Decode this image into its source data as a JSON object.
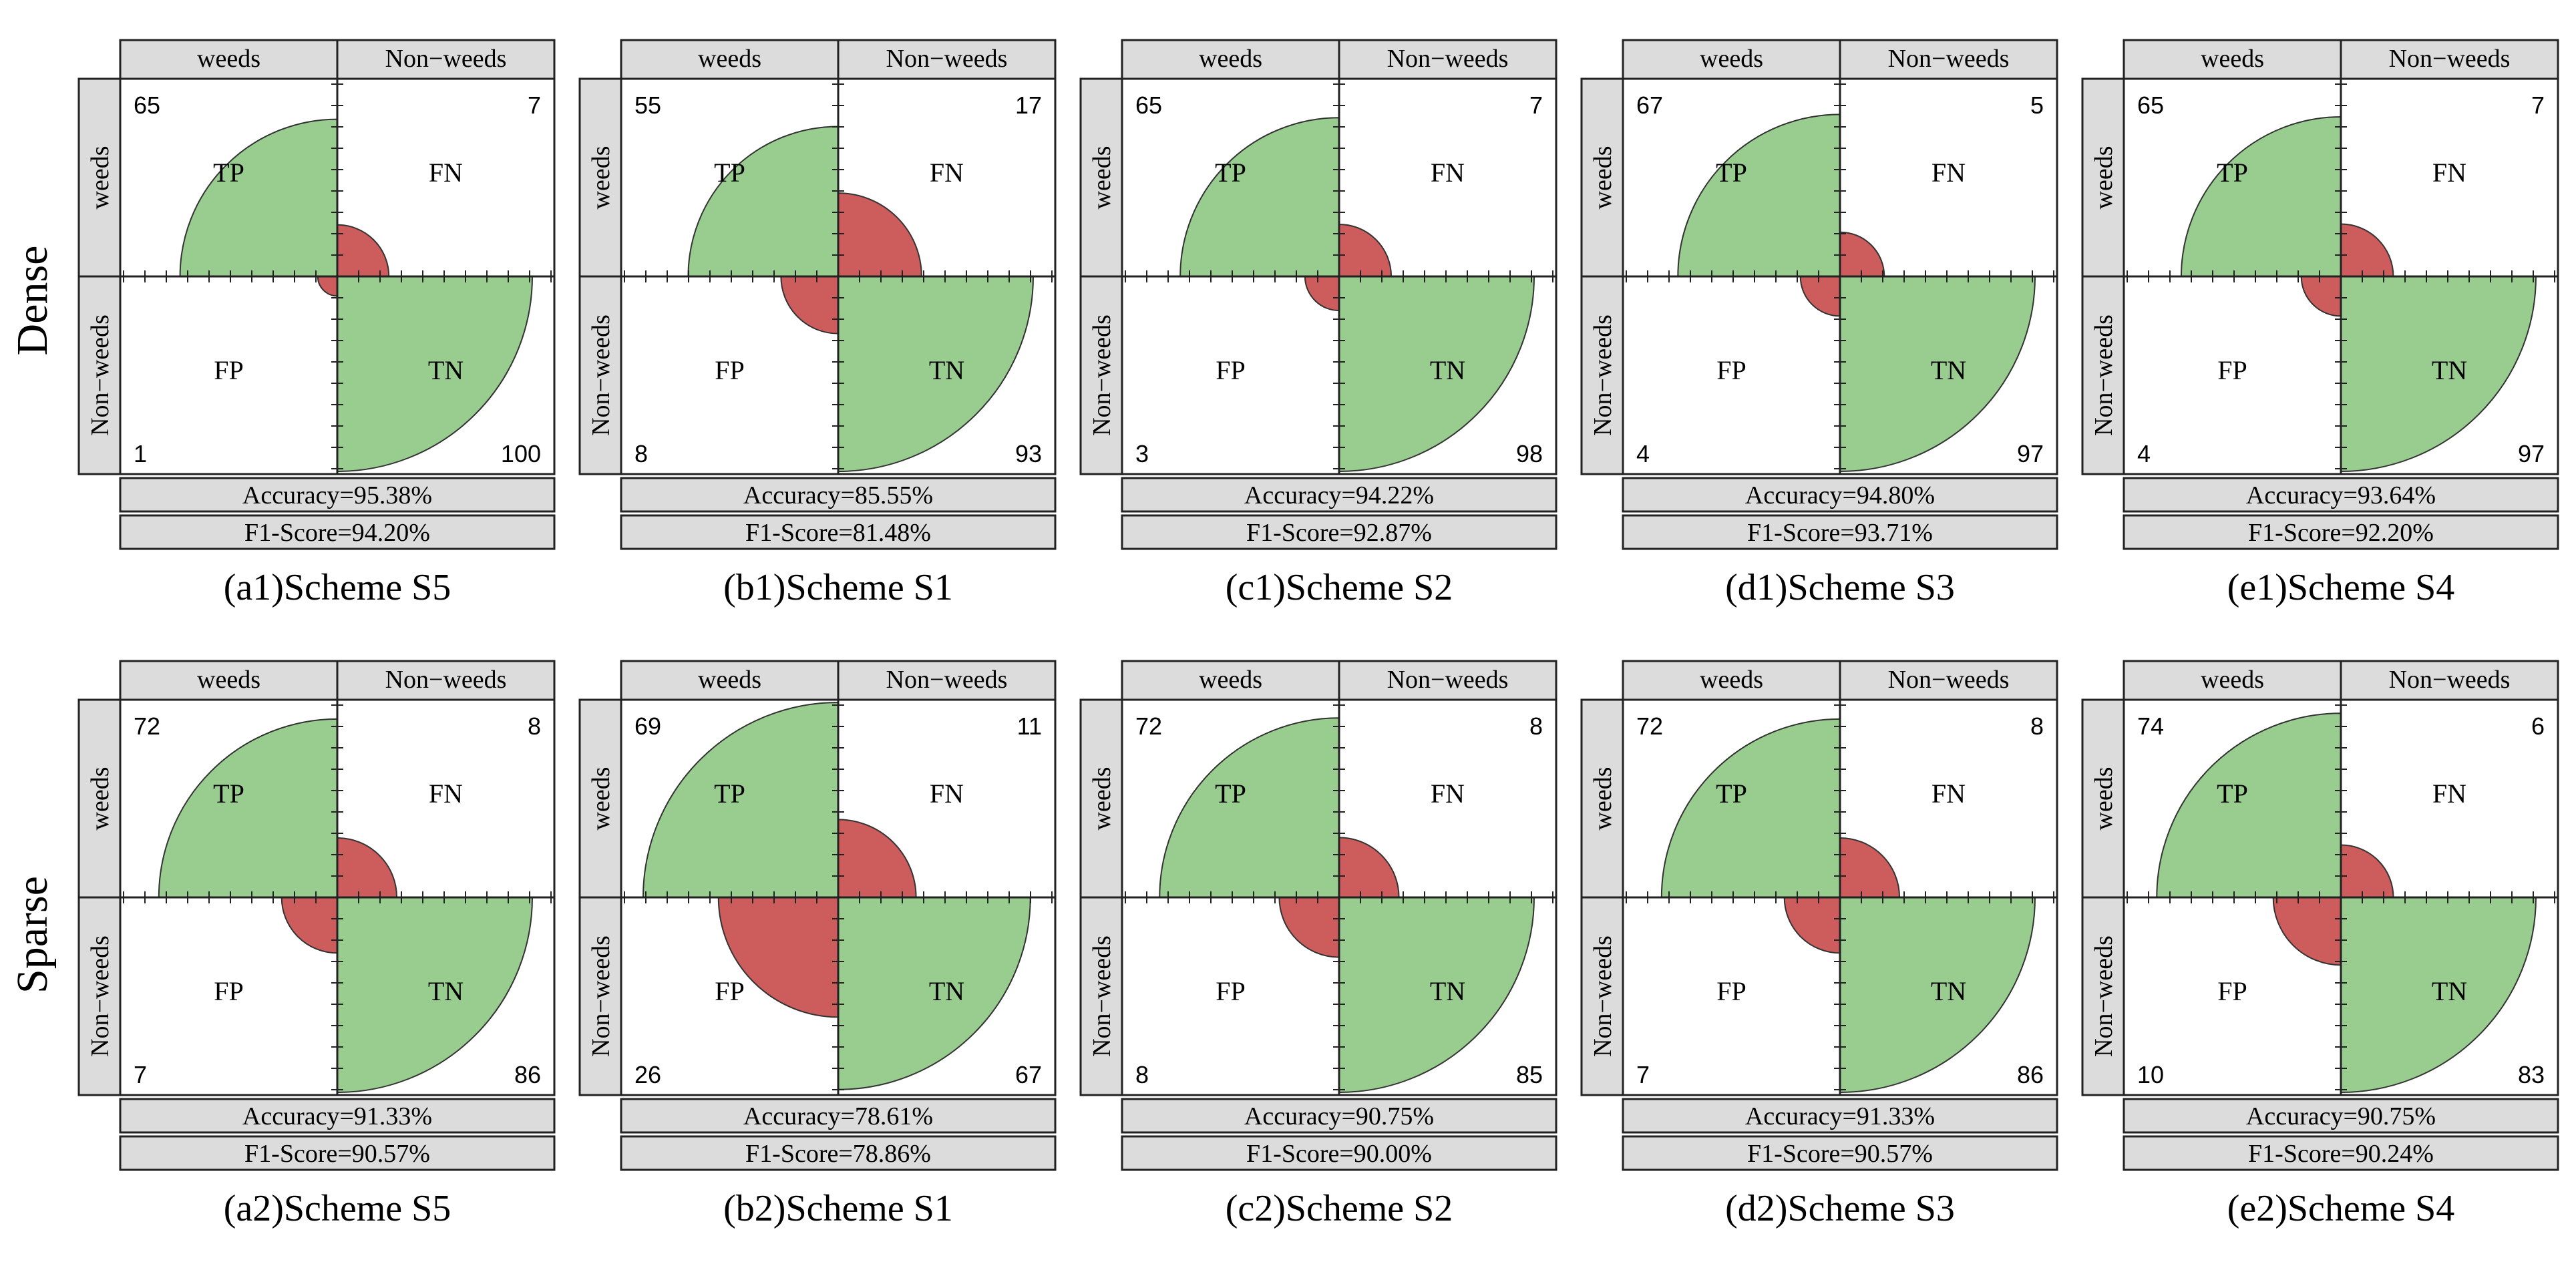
{
  "row_labels": [
    "Dense",
    "Sparse"
  ],
  "column_header": {
    "pred_pos": "weeds",
    "pred_neg": "Non−weeds"
  },
  "row_header": {
    "true_pos": "weeds",
    "true_neg": "Non−weeds"
  },
  "quadrant_labels": {
    "tp": "TP",
    "fn": "FN",
    "fp": "FP",
    "tn": "TN"
  },
  "colors": {
    "correct": "#99cc8f",
    "error": "#cd5c5c",
    "header_fill": "#dcdcdc",
    "outline": "#222222"
  },
  "chart_data": [
    {
      "type": "fourfold",
      "row": "Dense",
      "caption": "(a1)Scheme S5",
      "tp": 65,
      "fn": 7,
      "fp": 1,
      "tn": 100,
      "accuracy_text": "Accuracy=95.38%",
      "f1_text": "F1-Score=94.20%"
    },
    {
      "type": "fourfold",
      "row": "Dense",
      "caption": "(b1)Scheme S1",
      "tp": 55,
      "fn": 17,
      "fp": 8,
      "tn": 93,
      "accuracy_text": "Accuracy=85.55%",
      "f1_text": "F1-Score=81.48%"
    },
    {
      "type": "fourfold",
      "row": "Dense",
      "caption": "(c1)Scheme S2",
      "tp": 65,
      "fn": 7,
      "fp": 3,
      "tn": 98,
      "accuracy_text": "Accuracy=94.22%",
      "f1_text": "F1-Score=92.87%"
    },
    {
      "type": "fourfold",
      "row": "Dense",
      "caption": "(d1)Scheme S3",
      "tp": 67,
      "fn": 5,
      "fp": 4,
      "tn": 97,
      "accuracy_text": "Accuracy=94.80%",
      "f1_text": "F1-Score=93.71%"
    },
    {
      "type": "fourfold",
      "row": "Dense",
      "caption": "(e1)Scheme S4",
      "tp": 65,
      "fn": 7,
      "fp": 4,
      "tn": 97,
      "accuracy_text": "Accuracy=93.64%",
      "f1_text": "F1-Score=92.20%"
    },
    {
      "type": "fourfold",
      "row": "Sparse",
      "caption": "(a2)Scheme S5",
      "tp": 72,
      "fn": 8,
      "fp": 7,
      "tn": 86,
      "accuracy_text": "Accuracy=91.33%",
      "f1_text": "F1-Score=90.57%"
    },
    {
      "type": "fourfold",
      "row": "Sparse",
      "caption": "(b2)Scheme S1",
      "tp": 69,
      "fn": 11,
      "fp": 26,
      "tn": 67,
      "accuracy_text": "Accuracy=78.61%",
      "f1_text": "F1-Score=78.86%"
    },
    {
      "type": "fourfold",
      "row": "Sparse",
      "caption": "(c2)Scheme S2",
      "tp": 72,
      "fn": 8,
      "fp": 8,
      "tn": 85,
      "accuracy_text": "Accuracy=90.75%",
      "f1_text": "F1-Score=90.00%"
    },
    {
      "type": "fourfold",
      "row": "Sparse",
      "caption": "(d2)Scheme S3",
      "tp": 72,
      "fn": 8,
      "fp": 7,
      "tn": 86,
      "accuracy_text": "Accuracy=91.33%",
      "f1_text": "F1-Score=90.57%"
    },
    {
      "type": "fourfold",
      "row": "Sparse",
      "caption": "(e2)Scheme S4",
      "tp": 74,
      "fn": 6,
      "fp": 10,
      "tn": 83,
      "accuracy_text": "Accuracy=90.75%",
      "f1_text": "F1-Score=90.24%"
    }
  ]
}
